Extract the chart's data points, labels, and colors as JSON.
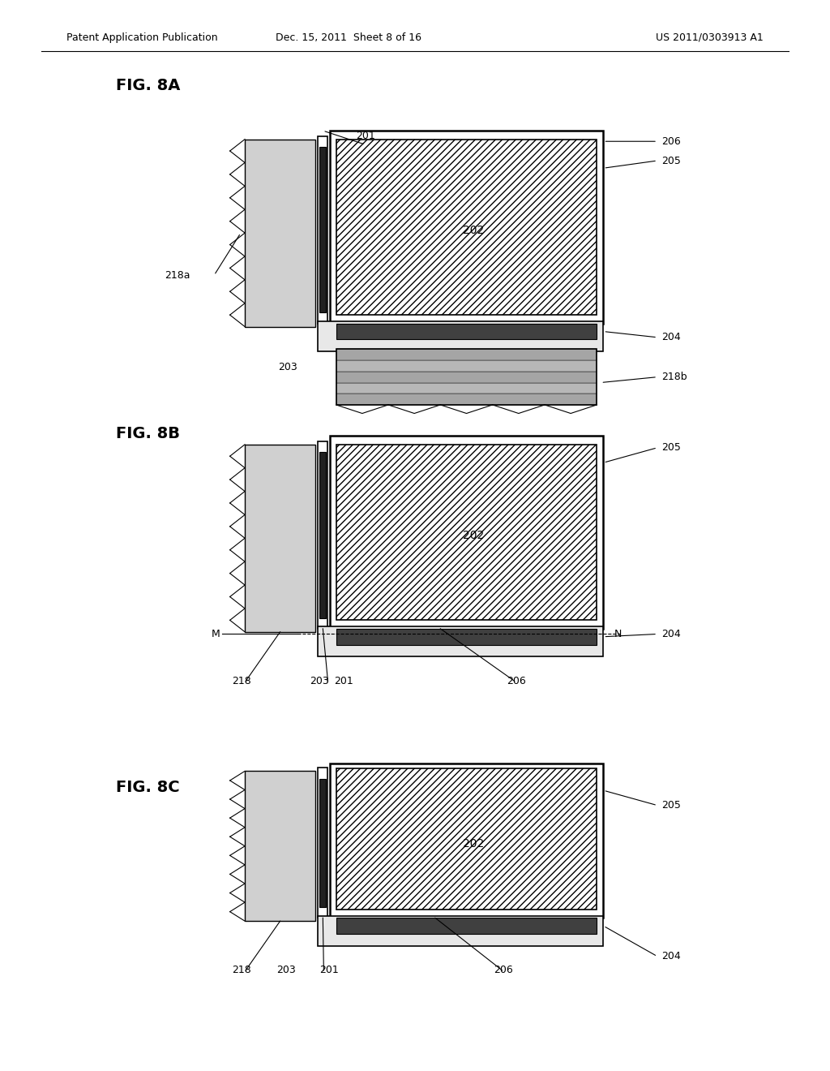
{
  "header_left": "Patent Application Publication",
  "header_mid": "Dec. 15, 2011  Sheet 8 of 16",
  "header_right": "US 2011/0303913 A1",
  "bg_color": "#ffffff",
  "line_color": "#000000",
  "gray_light": "#c8c8c8",
  "gray_mid": "#a0a0a0",
  "gray_dark": "#606060"
}
